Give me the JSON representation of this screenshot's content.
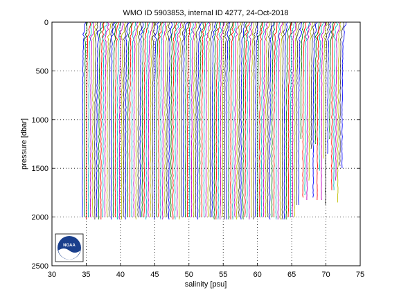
{
  "chart_data": {
    "type": "line",
    "title": "WMO ID 5903853, internal ID 4277, 24-Oct-2018",
    "xlabel": "salinity [psu]",
    "ylabel": "pressure [dbar]",
    "xlim": [
      30,
      75
    ],
    "ylim": [
      0,
      2500
    ],
    "y_reversed": true,
    "grid": true,
    "grid_style": "dotted",
    "xticks": [
      30,
      35,
      40,
      45,
      50,
      55,
      60,
      65,
      70,
      75
    ],
    "yticks": [
      0,
      500,
      1000,
      1500,
      2000,
      2500
    ],
    "xtick_labels": [
      "30",
      "35",
      "40",
      "45",
      "50",
      "55",
      "60",
      "65",
      "70",
      "75"
    ],
    "ytick_labels": [
      "0",
      "500",
      "1000",
      "1500",
      "2000",
      "2500"
    ],
    "profile_colors": [
      "#0000ff",
      "#007f00",
      "#ff0000",
      "#00bfbf",
      "#bf00bf",
      "#bfbf00",
      "#404040"
    ],
    "profile_stack": {
      "count": 127,
      "first_offset_psu": 34.5,
      "last_offset_psu": 72.4,
      "typical_max_pressure": 2000,
      "short_profile_max_pressure": 1200,
      "short_profiles_from_index": 104
    }
  },
  "logo": {
    "name": "NOAA",
    "text": "NOAA"
  }
}
